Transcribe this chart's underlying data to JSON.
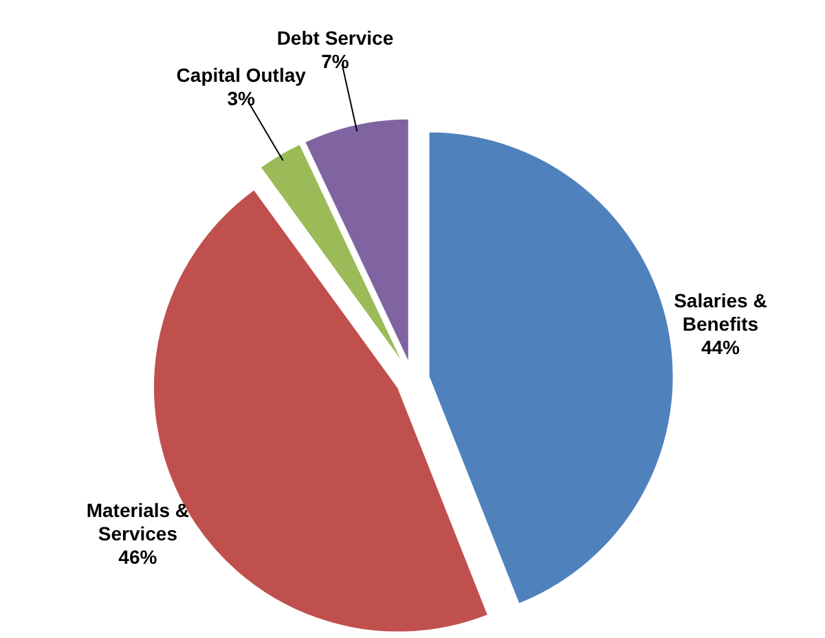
{
  "chart_data": {
    "type": "pie",
    "categories": [
      "Salaries & Benefits",
      "Materials & Services",
      "Capital Outlay",
      "Debt Service"
    ],
    "values": [
      44,
      46,
      3,
      7
    ],
    "colors": [
      "#4f81bd",
      "#c0504d",
      "#9bbb59",
      "#8064a2"
    ],
    "value_labels": [
      "44%",
      "46%",
      "3%",
      "7%"
    ]
  }
}
